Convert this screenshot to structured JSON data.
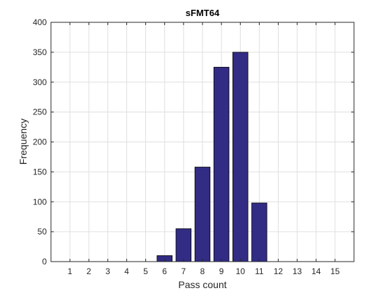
{
  "chart_data": {
    "type": "bar",
    "title": "sFMT64",
    "xlabel": "Pass count",
    "ylabel": "Frequency",
    "categories": [
      "1",
      "2",
      "3",
      "4",
      "5",
      "6",
      "7",
      "8",
      "9",
      "10",
      "11",
      "12",
      "13",
      "14",
      "15"
    ],
    "values": [
      0,
      0,
      0,
      0,
      0,
      10,
      55,
      158,
      325,
      350,
      98,
      0,
      0,
      0,
      0
    ],
    "xlim": [
      0,
      16
    ],
    "ylim": [
      0,
      400
    ],
    "yticks": [
      0,
      50,
      100,
      150,
      200,
      250,
      300,
      350,
      400
    ],
    "xticks": [
      1,
      2,
      3,
      4,
      5,
      6,
      7,
      8,
      9,
      10,
      11,
      12,
      13,
      14,
      15
    ],
    "grid": true,
    "colors": {
      "bar_fill": "#332C84",
      "bar_edge": "#000000",
      "grid": "#DFDFDF",
      "axis": "#262626"
    }
  }
}
